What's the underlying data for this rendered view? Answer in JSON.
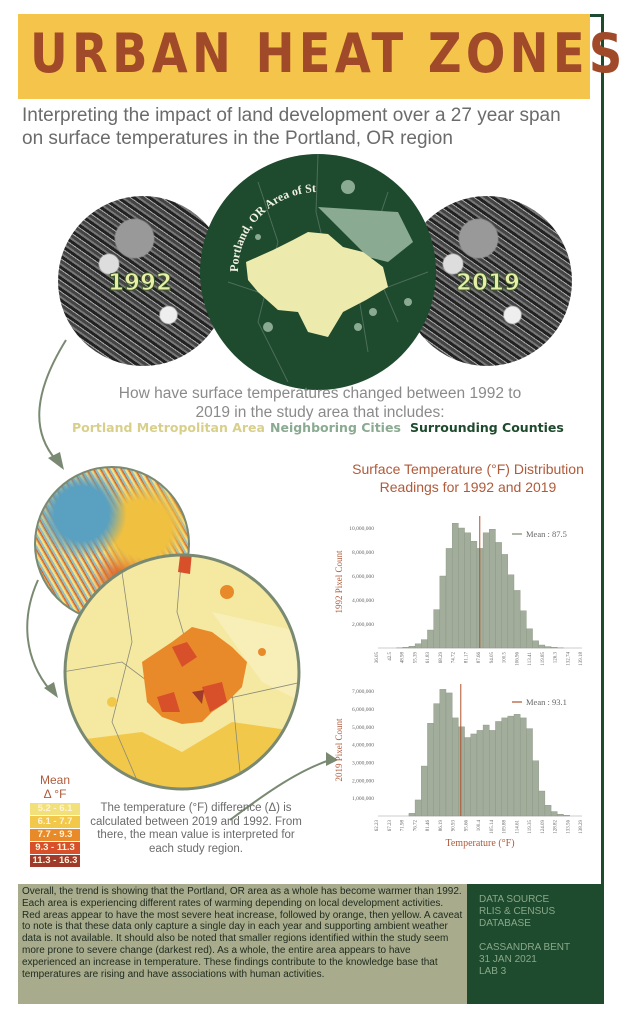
{
  "header": {
    "title": "URBAN HEAT ZONES",
    "subtitle": "Interpreting the impact of land development over a 27 year span on surface temperatures in the Portland, OR region"
  },
  "maps": {
    "left_year": "1992",
    "right_year": "2019",
    "study_label": "Portland, OR Area of Study"
  },
  "question": {
    "text": "How have surface temperatures changed between 1992 to 2019 in the study area that includes:",
    "areas": [
      {
        "label": "Portland Metropolitan Area",
        "color": "#e8e0a0"
      },
      {
        "label": "Neighboring Cities",
        "color": "#8aaa92"
      },
      {
        "label": "Surrounding Counties",
        "color": "#1e4a2d"
      }
    ]
  },
  "mean_legend": {
    "title_line1": "Mean",
    "title_line2": "Δ °F",
    "classes": [
      {
        "label": "5.2 - 6.1",
        "color": "#f2e07a"
      },
      {
        "label": "6.1 - 7.7",
        "color": "#f2c84a"
      },
      {
        "label": "7.7 - 9.3",
        "color": "#e88a2a"
      },
      {
        "label": "9.3 - 11.3",
        "color": "#d8502a"
      },
      {
        "label": "11.3 - 16.3",
        "color": "#a03a2a"
      }
    ],
    "explanation": "The temperature (°F) difference (Δ) is calculated between 2019 and 1992. From there, the mean value is interpreted for each study region."
  },
  "chart_title": {
    "line1": "Surface Temperature (°F) Distribution",
    "line2": "Readings for 1992 and 2019"
  },
  "chart_data": [
    {
      "type": "bar",
      "ylabel": "1992 Pixel Count",
      "mean_label": "Mean : 87.5",
      "mean": 87.5,
      "ylim": [
        0,
        11000000
      ],
      "yticks": [
        "10,000,000",
        "8,000,000",
        "6,000,000",
        "4,000,000",
        "2,000,000"
      ],
      "ytick_values": [
        10000000,
        8000000,
        6000000,
        4000000,
        2000000
      ],
      "xticks": [
        "36.05",
        "42.5",
        "48.98",
        "55.39",
        "61.83",
        "68.29",
        "74.72",
        "81.17",
        "87.66",
        "94.05",
        "100.5",
        "106.96",
        "113.41",
        "119.85",
        "126.3",
        "132.74",
        "139.18"
      ],
      "values": [
        0,
        0,
        0,
        20000,
        60000,
        150000,
        350000,
        700000,
        1500000,
        3200000,
        6000000,
        8300000,
        10400000,
        10000000,
        9600000,
        8900000,
        8300000,
        9600000,
        9900000,
        8800000,
        7800000,
        6100000,
        4800000,
        3100000,
        1600000,
        600000,
        250000,
        120000,
        60000,
        20000,
        0,
        0,
        0
      ]
    },
    {
      "type": "bar",
      "ylabel": "2019 Pixel Count",
      "xlabel": "Temperature (°F)",
      "mean_label": "Mean : 93.1",
      "mean": 93.1,
      "ylim": [
        0,
        7400000
      ],
      "yticks": [
        "7,000,000",
        "6,000,000",
        "5,000,000",
        "4,000,000",
        "3,000,000",
        "2,000,000",
        "1,000,000"
      ],
      "ytick_values": [
        7000000,
        6000000,
        5000000,
        4000000,
        3000000,
        2000000,
        1000000
      ],
      "xticks": [
        "62.23",
        "67.23",
        "71.98",
        "76.72",
        "81.46",
        "86.19",
        "90.93",
        "95.66",
        "100.4",
        "105.14",
        "109.88",
        "114.61",
        "119.35",
        "124.09",
        "128.82",
        "133.56",
        "138.29"
      ],
      "values": [
        0,
        0,
        0,
        0,
        0,
        150000,
        900000,
        2800000,
        5200000,
        6300000,
        7100000,
        6900000,
        5500000,
        5000000,
        4400000,
        4600000,
        4800000,
        5100000,
        4800000,
        5300000,
        5500000,
        5600000,
        5700000,
        5500000,
        4900000,
        3100000,
        1400000,
        600000,
        250000,
        100000,
        40000,
        0,
        0
      ]
    }
  ],
  "summary": "Overall, the trend is showing that the Portland, OR area as a whole has become warmer than 1992. Each area is experiencing different rates of warming depending on local development activities. Red areas appear to have the most severe heat increase, followed by orange, then yellow. A caveat to note is that these data only capture a single day in each year and supporting ambient weather data is not available. It should also be noted that smaller regions identified within the study seem more prone to severe change (darkest red). As a whole, the entire area appears to have experienced an increase in temperature. These findings contribute to the knowledge base that temperatures are rising and have associations with human activities.",
  "credits": {
    "line1": "DATA SOURCE",
    "line2": "RLIS & CENSUS",
    "line3": "DATABASE",
    "line4": "CASSANDRA BENT",
    "line5": "31 JAN 2021",
    "line6": "LAB 3"
  },
  "colors": {
    "accent_yellow": "#f5c44a",
    "title_brown": "#a04a2a",
    "dark_green": "#1e4a2d",
    "sage": "#a8ac8c",
    "bar_fill": "#a3ad9b",
    "mean_line": "#b0502a"
  }
}
